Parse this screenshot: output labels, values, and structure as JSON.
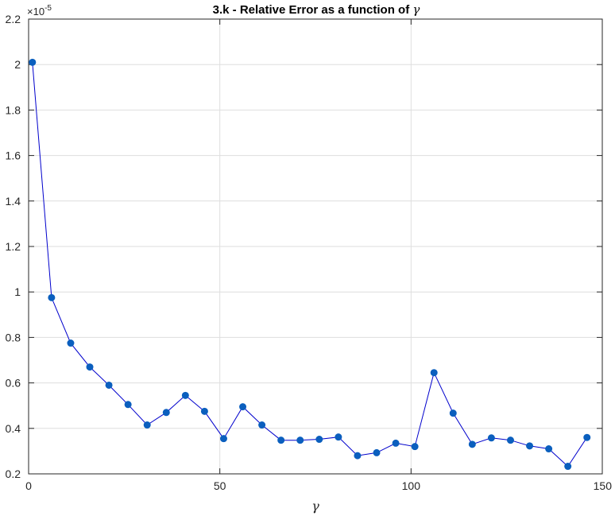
{
  "chart_data": {
    "type": "line",
    "title": "3.k - Relative Error as a function of ",
    "title_symbol": "γ",
    "xlabel": "γ",
    "ylabel": "",
    "y_exponent_label": "×10",
    "y_exponent_power": "-5",
    "xlim": [
      0,
      150
    ],
    "ylim": [
      0.2,
      2.2
    ],
    "xticks": [
      0,
      50,
      100,
      150
    ],
    "yticks": [
      0.2,
      0.4,
      0.6,
      0.8,
      1,
      1.2,
      1.4,
      1.6,
      1.8,
      2,
      2.2
    ],
    "grid": true,
    "series_color": "#0000cc",
    "marker_color": "#0b5fbe",
    "x": [
      1,
      6,
      11,
      16,
      21,
      26,
      31,
      36,
      41,
      46,
      51,
      56,
      61,
      66,
      71,
      76,
      81,
      86,
      91,
      96,
      101,
      106,
      111,
      116,
      121,
      126,
      131,
      136,
      141,
      146
    ],
    "y": [
      2.01,
      0.975,
      0.775,
      0.67,
      0.59,
      0.505,
      0.415,
      0.47,
      0.545,
      0.475,
      0.355,
      0.495,
      0.415,
      0.348,
      0.348,
      0.352,
      0.362,
      0.28,
      0.293,
      0.335,
      0.32,
      0.645,
      0.467,
      0.33,
      0.358,
      0.348,
      0.323,
      0.31,
      0.233,
      0.36
    ]
  }
}
